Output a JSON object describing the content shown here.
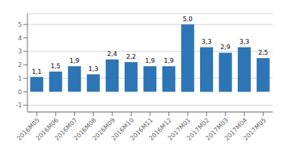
{
  "chart_data": {
    "type": "bar",
    "categories": [
      "2016M05",
      "2016M06",
      "2016M07",
      "2016M08",
      "2016M09",
      "2016M10",
      "2016M11",
      "2016M12",
      "2017M01",
      "2017M02",
      "2017M03",
      "2017M04",
      "2017M05"
    ],
    "values": [
      1.1,
      1.5,
      1.9,
      1.3,
      2.4,
      2.2,
      1.9,
      1.9,
      5.0,
      3.3,
      2.9,
      3.3,
      2.5
    ],
    "value_labels": [
      "1,1",
      "1,5",
      "1,9",
      "1,3",
      "2,4",
      "2,2",
      "1,9",
      "1,9",
      "5,0",
      "3,3",
      "2,9",
      "3,3",
      "2,5"
    ],
    "data_labels": true,
    "color": "#2E75B6",
    "ylim": [
      -1.5,
      5.8
    ],
    "yticks": [
      -1,
      0,
      1,
      2,
      3,
      4,
      5
    ],
    "grid": true
  }
}
